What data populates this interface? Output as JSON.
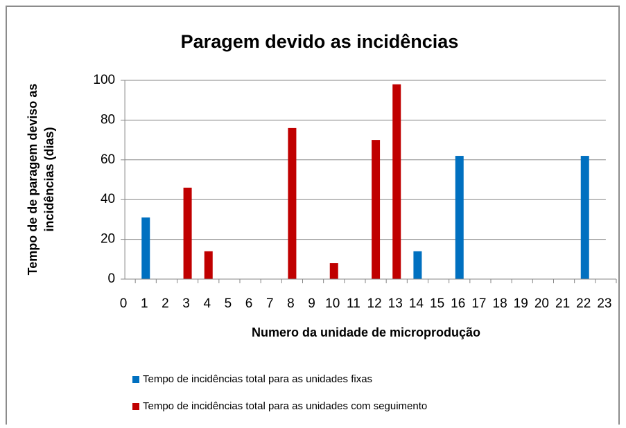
{
  "chart_data": {
    "type": "bar",
    "title": "Paragem devido as incidências",
    "x_label": "Numero da unidade de microprodução",
    "y_label": [
      "Tempo de de paragem deviso as",
      "incidências (dias)"
    ],
    "categories": [
      "0",
      "1",
      "2",
      "3",
      "4",
      "5",
      "6",
      "7",
      "8",
      "9",
      "10",
      "11",
      "12",
      "13",
      "14",
      "15",
      "16",
      "17",
      "18",
      "19",
      "20",
      "21",
      "22",
      "23"
    ],
    "series": [
      {
        "name": "Tempo de incidências total para as unidades fixas",
        "color": "#0070c0",
        "values": [
          null,
          31,
          null,
          null,
          null,
          null,
          null,
          null,
          null,
          null,
          null,
          null,
          null,
          null,
          14,
          null,
          62,
          null,
          null,
          null,
          null,
          null,
          62,
          null
        ]
      },
      {
        "name": "Tempo de incidências total para as unidades com seguimento",
        "color": "#c00000",
        "values": [
          null,
          null,
          null,
          46,
          14,
          null,
          null,
          null,
          76,
          null,
          8,
          null,
          70,
          98,
          null,
          null,
          null,
          null,
          null,
          null,
          null,
          null,
          null,
          null
        ]
      }
    ],
    "ylim": [
      0,
      100
    ],
    "yticks": [
      0,
      20,
      40,
      60,
      80,
      100
    ],
    "grid": true
  }
}
